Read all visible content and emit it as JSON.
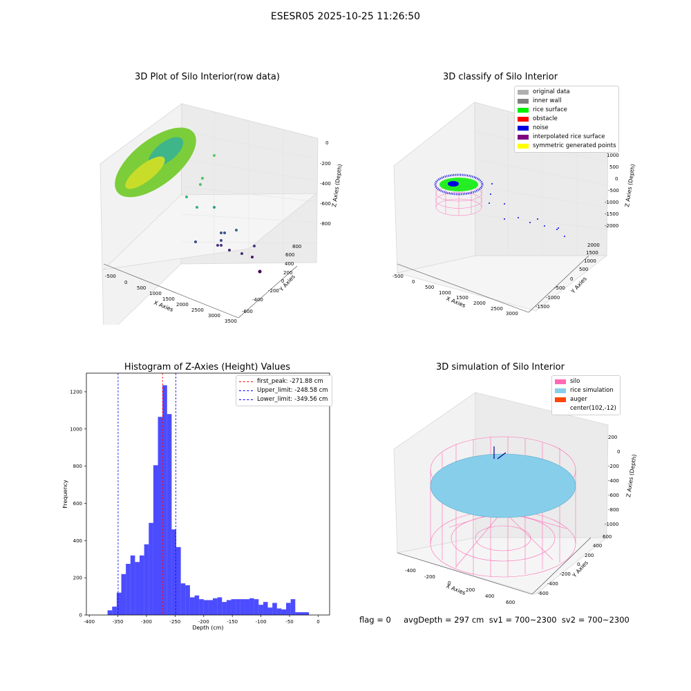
{
  "figure": {
    "title": "ESESR05 2025-10-25 11:26:50",
    "footer": "flag = 0     avgDepth = 297 cm  sv1 = 700~2300  sv2 = 700~2300"
  },
  "panel_raw": {
    "title": "3D Plot of Silo Interior(row data)",
    "xlabel": "X Axies",
    "ylabel": "Y Axies",
    "zlabel": "Z Axies (Depth)",
    "x_ticks": [
      "-500",
      "0",
      "500",
      "1000",
      "1500",
      "2000",
      "2500",
      "3000",
      "3500"
    ],
    "y_ticks": [
      "-600",
      "-400",
      "-200",
      "0",
      "200",
      "400",
      "600",
      "800"
    ],
    "z_ticks": [
      "0",
      "-200",
      "-400",
      "-600",
      "-800"
    ]
  },
  "panel_classify": {
    "title": "3D classify of Silo Interior",
    "xlabel": "X Axies",
    "ylabel": "Y Axies",
    "zlabel": "Z Axies (Depth)",
    "x_ticks": [
      "-500",
      "0",
      "500",
      "1000",
      "1500",
      "2000",
      "2500",
      "3000"
    ],
    "y_ticks": [
      "-1500",
      "-1000",
      "-500",
      "0",
      "500",
      "1000",
      "1500",
      "2000"
    ],
    "z_ticks": [
      "1000",
      "500",
      "0",
      "-500",
      "-1000",
      "-1500",
      "-2000"
    ],
    "legend": [
      {
        "label": "original data",
        "color": "#b0b0b0"
      },
      {
        "label": "inner wall",
        "color": "#808080"
      },
      {
        "label": "rice surface",
        "color": "#00ee00"
      },
      {
        "label": "obstacle",
        "color": "#ff0000"
      },
      {
        "label": "noise",
        "color": "#0000e0"
      },
      {
        "label": "interpolated rice surface",
        "color": "#800080"
      },
      {
        "label": "symmetric generated points",
        "color": "#ffff00"
      }
    ]
  },
  "panel_sim": {
    "title": "3D simulation of Silo Interior",
    "xlabel": "X Axies",
    "ylabel": "Y Axies",
    "zlabel": "Z Axies (Depth)",
    "x_ticks": [
      "-400",
      "-200",
      "0",
      "200",
      "400",
      "600"
    ],
    "y_ticks": [
      "-600",
      "-400",
      "-200",
      "0",
      "200",
      "400",
      "600"
    ],
    "z_ticks": [
      "200",
      "0",
      "-200",
      "-400",
      "-600",
      "-800",
      "-1000"
    ],
    "legend": [
      {
        "label": "silo",
        "color": "#ff69b4"
      },
      {
        "label": "rice simulation",
        "color": "#87ceeb"
      },
      {
        "label": "auger",
        "color": "#ff4500"
      },
      {
        "label": "center(102,-12)",
        "color": ""
      }
    ]
  },
  "chart_data": {
    "type": "bar",
    "title": "Histogram of Z-Axies (Height) Values",
    "xlabel": "Depth (cm)",
    "ylabel": "Frequency",
    "xlim": [
      -405,
      20
    ],
    "ylim": [
      0,
      1300
    ],
    "x_ticks": [
      -400,
      -350,
      -300,
      -250,
      -200,
      -150,
      -100,
      -50,
      0
    ],
    "y_ticks": [
      0,
      200,
      400,
      600,
      800,
      1000,
      1200
    ],
    "bin_width": 8,
    "bar_color": "#0000ff",
    "bin_starts": [
      -368,
      -360,
      -352,
      -344,
      -336,
      -328,
      -320,
      -312,
      -304,
      -296,
      -288,
      -280,
      -272,
      -264,
      -256,
      -248,
      -240,
      -232,
      -224,
      -216,
      -208,
      -200,
      -192,
      -184,
      -176,
      -168,
      -160,
      -152,
      -144,
      -136,
      -128,
      -120,
      -112,
      -104,
      -96,
      -88,
      -80,
      -72,
      -64,
      -56,
      -48,
      -40,
      -32,
      -24
    ],
    "values": [
      25,
      45,
      120,
      220,
      275,
      320,
      285,
      320,
      380,
      495,
      805,
      1065,
      1235,
      1080,
      460,
      365,
      170,
      160,
      95,
      105,
      85,
      80,
      80,
      90,
      95,
      70,
      80,
      85,
      85,
      85,
      85,
      90,
      85,
      55,
      70,
      40,
      65,
      35,
      30,
      65,
      85,
      15,
      15,
      15
    ],
    "lines": [
      {
        "label": "first_peak: -271.88 cm",
        "x": -271.88,
        "color": "#ff0000"
      },
      {
        "label": "Upper_limit: -248.58 cm",
        "x": -248.58,
        "color": "#0000ff"
      },
      {
        "label": "Lower_limit: -349.56 cm",
        "x": -349.56,
        "color": "#0000ff"
      }
    ],
    "legend_position": "top-right"
  }
}
